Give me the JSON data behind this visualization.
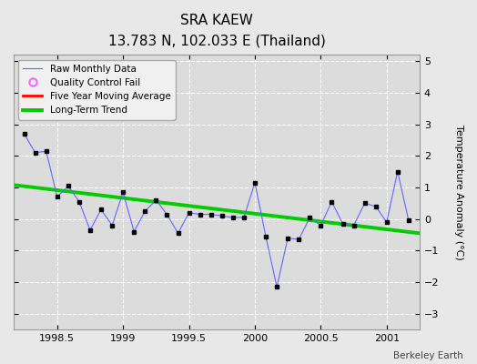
{
  "title": "SRA KAEW",
  "subtitle": "13.783 N, 102.033 E (Thailand)",
  "watermark": "Berkeley Earth",
  "ylabel": "Temperature Anomaly (°C)",
  "ylim": [
    -3.5,
    5.2
  ],
  "xlim": [
    1998.17,
    2001.25
  ],
  "xticks": [
    1998.5,
    1999.0,
    1999.5,
    2000.0,
    2000.5,
    2001.0
  ],
  "yticks": [
    -3,
    -2,
    -1,
    0,
    1,
    2,
    3,
    4,
    5
  ],
  "raw_x": [
    1998.25,
    1998.333,
    1998.417,
    1998.5,
    1998.583,
    1998.667,
    1998.75,
    1998.833,
    1998.917,
    1999.0,
    1999.083,
    1999.167,
    1999.25,
    1999.333,
    1999.417,
    1999.5,
    1999.583,
    1999.667,
    1999.75,
    1999.833,
    1999.917,
    2000.0,
    2000.083,
    2000.167,
    2000.25,
    2000.333,
    2000.417,
    2000.5,
    2000.583,
    2000.667,
    2000.75,
    2000.833,
    2000.917,
    2001.0,
    2001.083,
    2001.167
  ],
  "raw_y": [
    2.7,
    2.1,
    2.15,
    0.7,
    1.05,
    0.55,
    -0.35,
    0.3,
    -0.2,
    0.85,
    -0.4,
    0.25,
    0.6,
    0.15,
    -0.45,
    0.2,
    0.15,
    0.15,
    0.1,
    0.05,
    0.05,
    1.15,
    -0.55,
    -2.15,
    -0.6,
    -0.65,
    0.05,
    -0.2,
    0.55,
    -0.15,
    -0.2,
    0.5,
    0.4,
    -0.1,
    1.5,
    -0.05
  ],
  "trend_x": [
    1998.17,
    2001.25
  ],
  "trend_y": [
    1.08,
    -0.45
  ],
  "raw_color": "#6666ff",
  "raw_marker_color": "#000000",
  "trend_color": "#00cc00",
  "qc_color": "#ff66ff",
  "moving_avg_color": "#ff0000",
  "background_color": "#e8e8e8",
  "plot_bg_color": "#dcdcdc",
  "grid_color": "#ffffff"
}
